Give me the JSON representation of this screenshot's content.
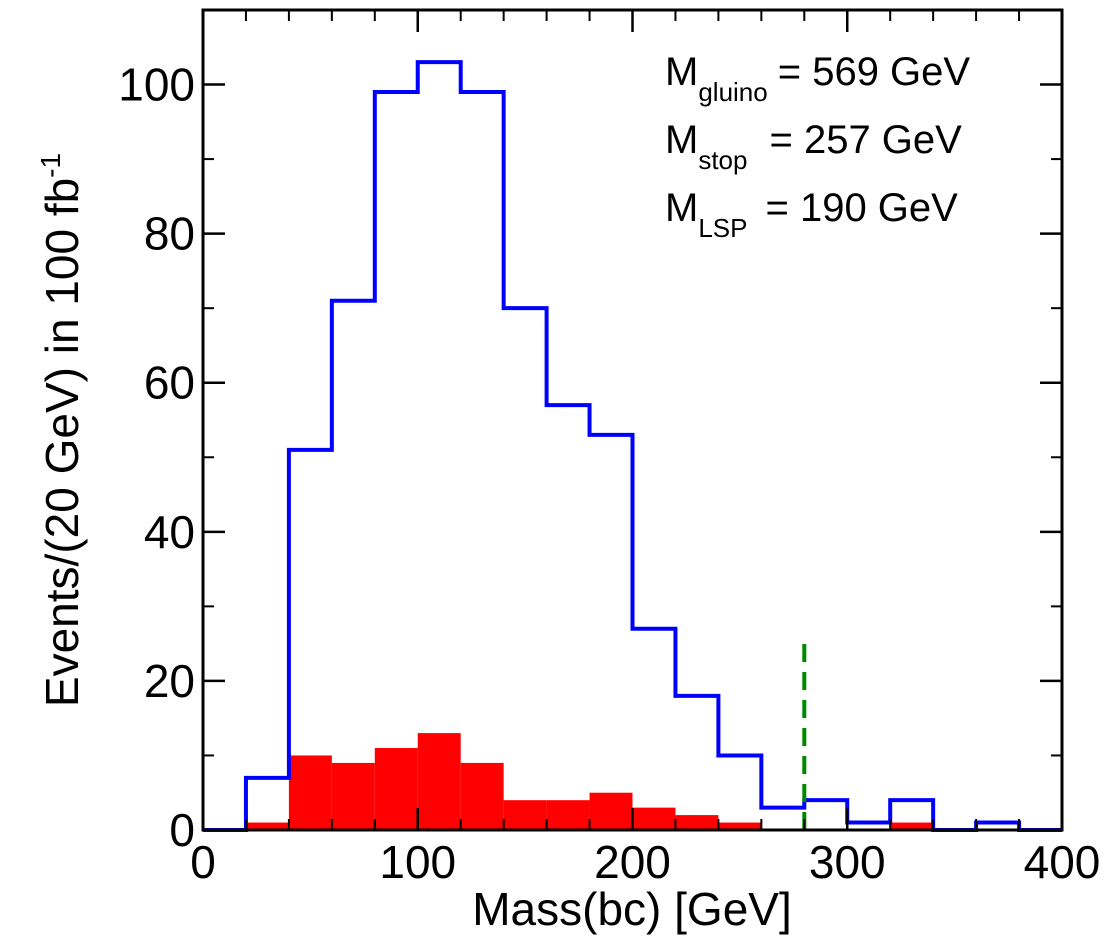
{
  "chart_data": {
    "type": "histogram",
    "xlabel": "Mass(bc)  [GeV]",
    "ylabel": "Events/(20 GeV)  in 100 fb",
    "ylabel_sup": "-1",
    "xlim": [
      0,
      400
    ],
    "ylim": [
      0,
      110
    ],
    "x_ticks": [
      0,
      100,
      200,
      300,
      400
    ],
    "y_ticks": [
      0,
      20,
      40,
      60,
      80,
      100
    ],
    "bin_edges": [
      0,
      20,
      40,
      60,
      80,
      100,
      120,
      140,
      160,
      180,
      200,
      220,
      240,
      260,
      280,
      300,
      320,
      340,
      360,
      380,
      400
    ],
    "series": [
      {
        "style": "step",
        "color": "#0000ff",
        "values": [
          0,
          7,
          51,
          71,
          99,
          103,
          99,
          70,
          57,
          53,
          27,
          18,
          10,
          3,
          4,
          1,
          4,
          0,
          1,
          0
        ]
      },
      {
        "style": "filled",
        "color": "#ff0000",
        "values": [
          0,
          1,
          10,
          9,
          11,
          13,
          9,
          4,
          4,
          5,
          3,
          2,
          1,
          0,
          0,
          0,
          1,
          0,
          0,
          0
        ]
      }
    ],
    "cut_line": {
      "x": 280,
      "y_top": 25,
      "color": "#008800"
    },
    "annotations": [
      {
        "main": "M",
        "sub": "gluino",
        "rest": "= 569 GeV"
      },
      {
        "main": "M",
        "sub": "stop",
        "rest": "= 257 GeV"
      },
      {
        "main": "M",
        "sub": "LSP",
        "rest": "= 190 GeV"
      }
    ],
    "grid": false,
    "legend": "none"
  }
}
